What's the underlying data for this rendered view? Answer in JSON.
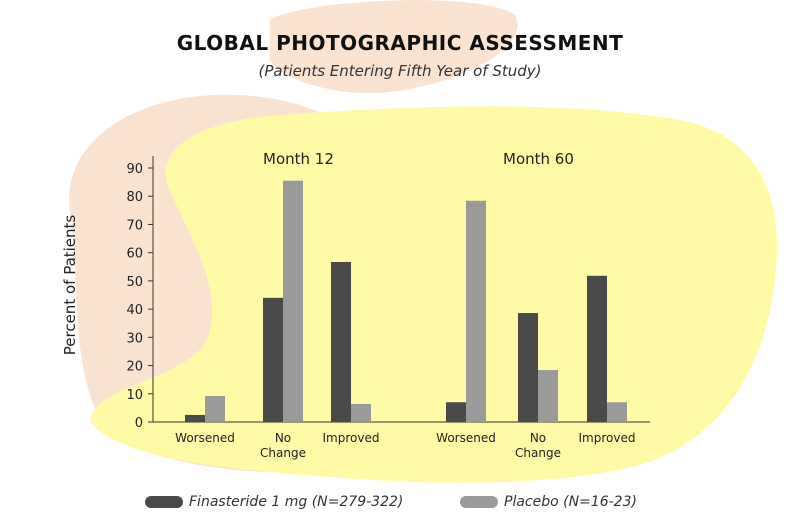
{
  "chart_data": {
    "type": "bar",
    "title": "GLOBAL PHOTOGRAPHIC ASSESSMENT",
    "subtitle": "(Patients Entering Fifth Year of Study)",
    "ylabel": "Percent of Patients",
    "xlabel": "",
    "ylim": [
      0,
      90
    ],
    "yticks": [
      "0",
      "10",
      "20",
      "30",
      "40",
      "50",
      "60",
      "70",
      "80",
      "90"
    ],
    "panels": [
      {
        "label": "Month 12",
        "categories": [
          "Worsened",
          "No Change",
          "Improved"
        ],
        "series": [
          {
            "name": "Finasteride 1 mg (N=279-322)",
            "values": [
              2.5,
              44,
              56.7
            ]
          },
          {
            "name": "Placebo (N=16-23)",
            "values": [
              9.2,
              85.5,
              6.4
            ]
          }
        ]
      },
      {
        "label": "Month 60",
        "categories": [
          "Worsened",
          "No Change",
          "Improved"
        ],
        "series": [
          {
            "name": "Finasteride 1 mg (N=279-322)",
            "values": [
              7,
              38.6,
              51.8
            ]
          },
          {
            "name": "Placebo (N=16-23)",
            "values": [
              78.4,
              18.4,
              7
            ]
          }
        ]
      }
    ],
    "legend": [
      "Finasteride 1 mg (N=279-322)",
      "Placebo (N=16-23)"
    ],
    "legend_position": "bottom",
    "colors": {
      "finasteride": "#4a4a4a",
      "placebo": "#9a9a9a",
      "background_yellow": "#fffaa6",
      "background_peach": "#fbe3d2"
    }
  }
}
